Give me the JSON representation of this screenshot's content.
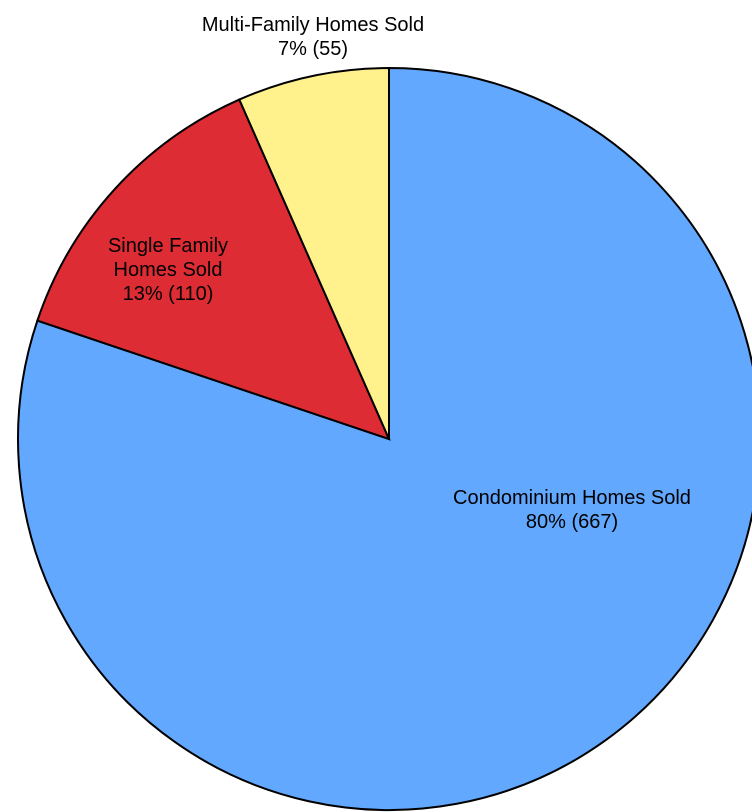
{
  "chart_data": {
    "type": "pie",
    "categories": [
      "Condominium Homes Sold",
      "Single Family Homes Sold",
      "Multi-Family Homes Sold"
    ],
    "values": [
      667,
      110,
      55
    ],
    "value_labels": [
      "80% (667)",
      "13% (110)",
      "7% (55)"
    ],
    "colors": [
      "#62a8ff",
      "#de2c35",
      "#fff28c"
    ],
    "start_angle": 90,
    "direction": "clockwise"
  }
}
